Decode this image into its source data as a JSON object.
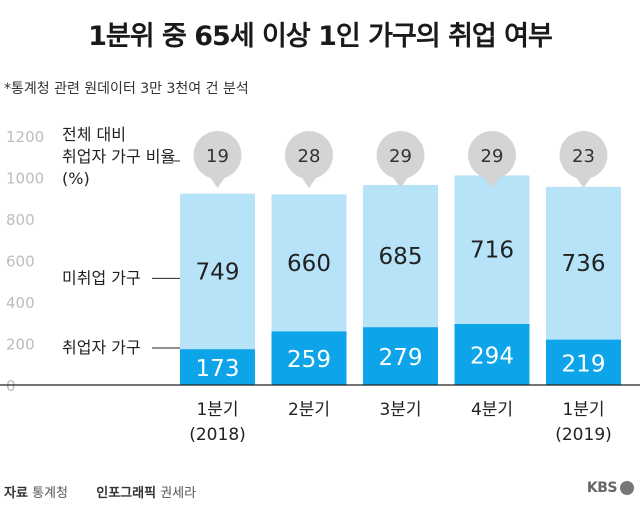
{
  "title": "1분위 중 65세 이상 1인 가구의 취업 여부",
  "note": "*통계청 관련 원데이터 3만 3천여 건 분석",
  "footer": {
    "source_label": "자료",
    "source": "통계청",
    "graphic_label": "인포그래픽",
    "graphic": "권세라"
  },
  "logo_text": "KBS",
  "chart_data": {
    "type": "bar",
    "stacked": true,
    "categories": [
      [
        "1분기",
        "(2018)"
      ],
      [
        "2분기"
      ],
      [
        "3분기"
      ],
      [
        "4분기"
      ],
      [
        "1분기",
        "(2019)"
      ]
    ],
    "series": [
      {
        "name": "취업자 가구",
        "values": [
          173,
          259,
          279,
          294,
          219
        ],
        "color": "#0ea4ea",
        "label_color": "#ffffff"
      },
      {
        "name": "미취업 가구",
        "values": [
          749,
          660,
          685,
          716,
          736
        ],
        "color": "#b7e3f8",
        "label_color": "#222222"
      }
    ],
    "ratio_label": [
      "전체 대비",
      "취업자 가구 비율",
      "(%)"
    ],
    "ratio_values": [
      19,
      28,
      29,
      29,
      23
    ],
    "ylim": [
      0,
      1200
    ],
    "yticks": [
      0,
      200,
      400,
      600,
      800,
      1000,
      1200
    ],
    "grid": false,
    "bubble_color": "#d4d4d4"
  }
}
